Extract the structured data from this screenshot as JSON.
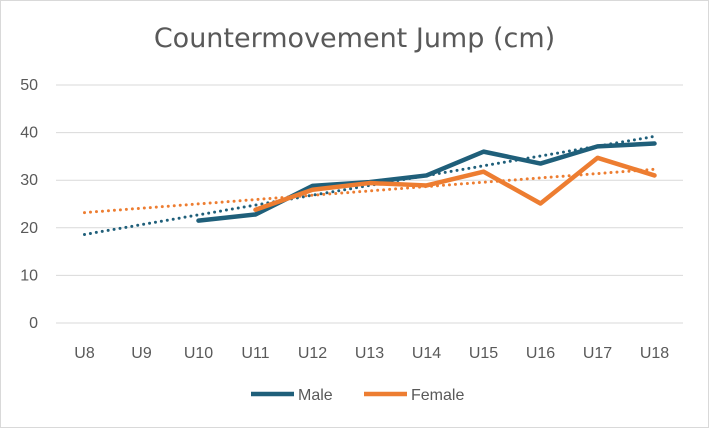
{
  "chart_data": {
    "type": "line",
    "title": "Countermovement Jump (cm)",
    "categories": [
      "U8",
      "U9",
      "U10",
      "U11",
      "U12",
      "U13",
      "U14",
      "U15",
      "U16",
      "U17",
      "U18"
    ],
    "ylim": [
      0,
      50
    ],
    "yticks": [
      "0",
      "10",
      "20",
      "30",
      "40",
      "50"
    ],
    "grid": true,
    "legend_position": "bottom",
    "series": [
      {
        "name": "Male",
        "color": "#1f5f7a",
        "values": [
          null,
          null,
          21.5,
          22.8,
          28.8,
          29.6,
          31.0,
          36.0,
          33.5,
          37.1,
          37.7
        ],
        "trendline": {
          "type": "linear",
          "style": "dotted",
          "from": 18.6,
          "to": 39.2
        }
      },
      {
        "name": "Female",
        "color": "#ed7d31",
        "values": [
          null,
          null,
          null,
          23.8,
          28.0,
          29.4,
          28.9,
          31.8,
          25.1,
          34.7,
          31.0
        ],
        "trendline": {
          "type": "linear",
          "style": "dotted",
          "from": 23.2,
          "to": 32.3
        }
      }
    ]
  }
}
